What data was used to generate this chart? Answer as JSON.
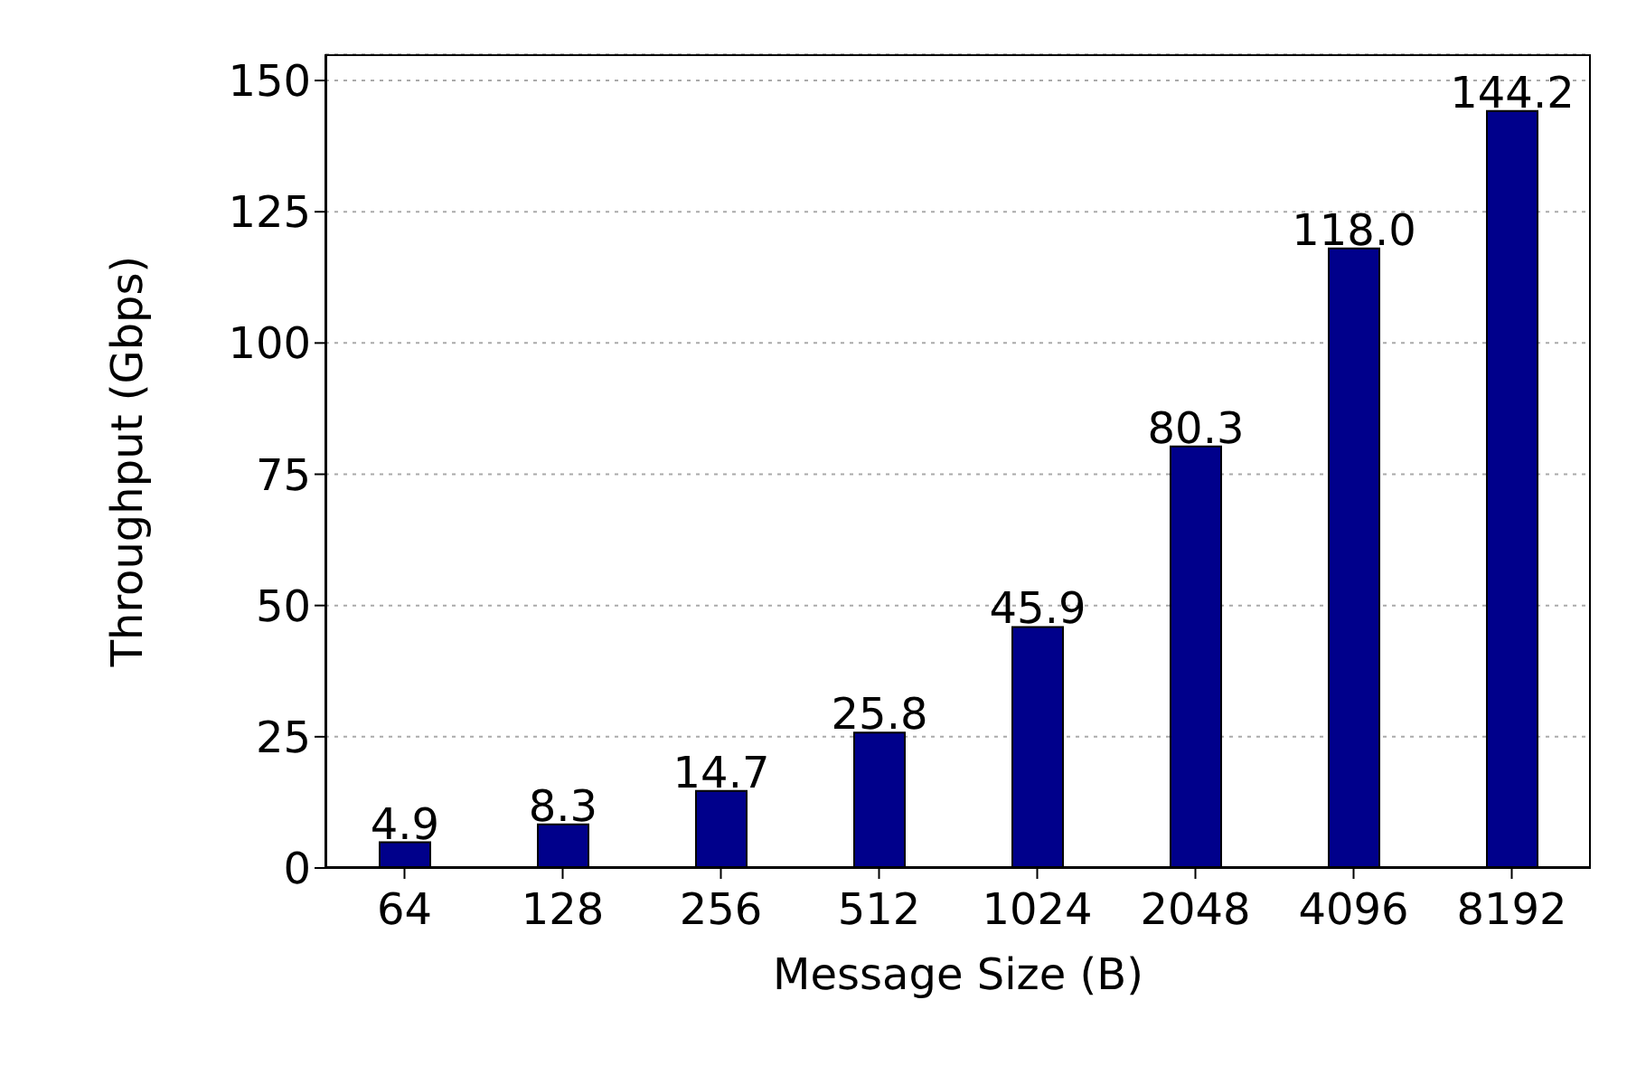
{
  "chart_data": {
    "type": "bar",
    "xlabel": "Message Size (B)",
    "ylabel": "Throughput (Gbps)",
    "categories": [
      "64",
      "128",
      "256",
      "512",
      "1024",
      "2048",
      "4096",
      "8192"
    ],
    "values": [
      4.9,
      8.3,
      14.7,
      25.8,
      45.9,
      80.3,
      118.0,
      144.2
    ],
    "value_labels": [
      "4.9",
      "8.3",
      "14.7",
      "25.8",
      "45.9",
      "80.3",
      "118.0",
      "144.2"
    ],
    "color": "#00008b",
    "ylim": [
      0,
      155
    ],
    "yticks": [
      0,
      25,
      50,
      75,
      100,
      125,
      150
    ],
    "grid": "y"
  }
}
